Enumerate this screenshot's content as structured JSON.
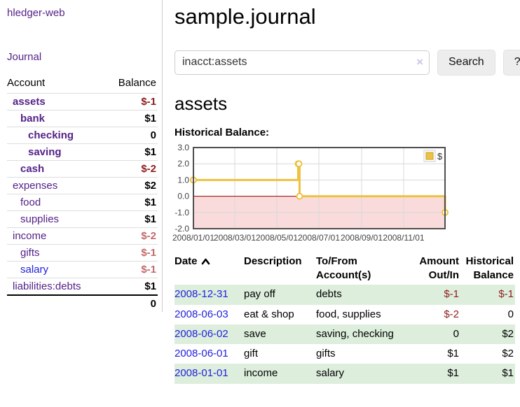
{
  "app": {
    "brand": "hledger-web",
    "nav_journal": "Journal"
  },
  "sidebar": {
    "header": {
      "account": "Account",
      "balance": "Balance"
    },
    "accounts": [
      {
        "name": "assets",
        "indent": 1,
        "bold": true,
        "link_color": "purple",
        "balance": "$-1",
        "balance_style": "neg-strong"
      },
      {
        "name": "bank",
        "indent": 2,
        "bold": true,
        "link_color": "purple",
        "balance": "$1",
        "balance_style": "pos"
      },
      {
        "name": "checking",
        "indent": 3,
        "bold": true,
        "link_color": "purple",
        "balance": "0",
        "balance_style": "pos"
      },
      {
        "name": "saving",
        "indent": 3,
        "bold": true,
        "link_color": "purple",
        "balance": "$1",
        "balance_style": "pos"
      },
      {
        "name": "cash",
        "indent": 2,
        "bold": true,
        "link_color": "purple",
        "balance": "$-2",
        "balance_style": "neg-strong"
      },
      {
        "name": "expenses",
        "indent": 1,
        "bold": false,
        "link_color": "purple",
        "balance": "$2",
        "balance_style": "pos"
      },
      {
        "name": "food",
        "indent": 2,
        "bold": false,
        "link_color": "purple",
        "balance": "$1",
        "balance_style": "pos"
      },
      {
        "name": "supplies",
        "indent": 2,
        "bold": false,
        "link_color": "purple",
        "balance": "$1",
        "balance_style": "pos"
      },
      {
        "name": "income",
        "indent": 1,
        "bold": false,
        "link_color": "purple",
        "balance": "$-2",
        "balance_style": "neg-soft"
      },
      {
        "name": "gifts",
        "indent": 2,
        "bold": false,
        "link_color": "purple",
        "balance": "$-1",
        "balance_style": "neg-soft"
      },
      {
        "name": "salary",
        "indent": 2,
        "bold": false,
        "link_color": "blue",
        "balance": "$-1",
        "balance_style": "neg-soft"
      },
      {
        "name": "liabilities:debts",
        "indent": 1,
        "bold": false,
        "link_color": "purple",
        "balance": "$1",
        "balance_style": "pos"
      }
    ],
    "total": "0"
  },
  "header": {
    "title": "sample.journal"
  },
  "search": {
    "value": "inacct:assets",
    "clear_icon": "×",
    "button_label": "Search",
    "help_label": "?"
  },
  "main": {
    "account_title": "assets",
    "chart_title": "Historical Balance:"
  },
  "chart_data": {
    "type": "line",
    "step": true,
    "title": "Historical Balance",
    "series": [
      {
        "name": "$",
        "color": "#edc240",
        "points": [
          [
            "2008-01-01",
            1
          ],
          [
            "2008-06-01",
            2
          ],
          [
            "2008-06-02",
            2
          ],
          [
            "2008-06-03",
            0
          ],
          [
            "2008-12-31",
            -1
          ]
        ]
      }
    ],
    "x_ticks": [
      "2008/01/01",
      "2008/03/01",
      "2008/05/01",
      "2008/07/01",
      "2008/09/01",
      "2008/11/01"
    ],
    "y_ticks": [
      "3.0",
      "2.0",
      "1.0",
      "0.0",
      "-1.0",
      "-2.0"
    ],
    "ylim": [
      -2,
      3
    ],
    "xlim": [
      "2008-01-01",
      "2008-12-31"
    ],
    "legend_position": "top-right",
    "grid": true,
    "colors": {
      "grid": "#d8d8d8",
      "border": "#4f4f4f",
      "zero_line": "#990000",
      "negative_region": "#fadbdb",
      "tick_text": "#444444"
    }
  },
  "register": {
    "columns": [
      {
        "label": "Date",
        "sort": "ascending"
      },
      {
        "label": "Description"
      },
      {
        "label": "To/From Account(s)"
      },
      {
        "label": "Amount Out/In"
      },
      {
        "label": "Historical Balance"
      }
    ],
    "rows": [
      {
        "date": "2008-12-31",
        "description": "pay off",
        "accounts": "debts",
        "amount": "$-1",
        "amount_neg": true,
        "balance": "$-1",
        "balance_neg": true,
        "shaded": true
      },
      {
        "date": "2008-06-03",
        "description": "eat & shop",
        "accounts": "food, supplies",
        "amount": "$-2",
        "amount_neg": true,
        "balance": "0",
        "balance_neg": false,
        "shaded": false
      },
      {
        "date": "2008-06-02",
        "description": "save",
        "accounts": "saving, checking",
        "amount": "0",
        "amount_neg": false,
        "balance": "$2",
        "balance_neg": false,
        "shaded": true
      },
      {
        "date": "2008-06-01",
        "description": "gift",
        "accounts": "gifts",
        "amount": "$1",
        "amount_neg": false,
        "balance": "$2",
        "balance_neg": false,
        "shaded": false
      },
      {
        "date": "2008-01-01",
        "description": "income",
        "accounts": "salary",
        "amount": "$1",
        "amount_neg": false,
        "balance": "$1",
        "balance_neg": false,
        "shaded": true
      }
    ]
  }
}
